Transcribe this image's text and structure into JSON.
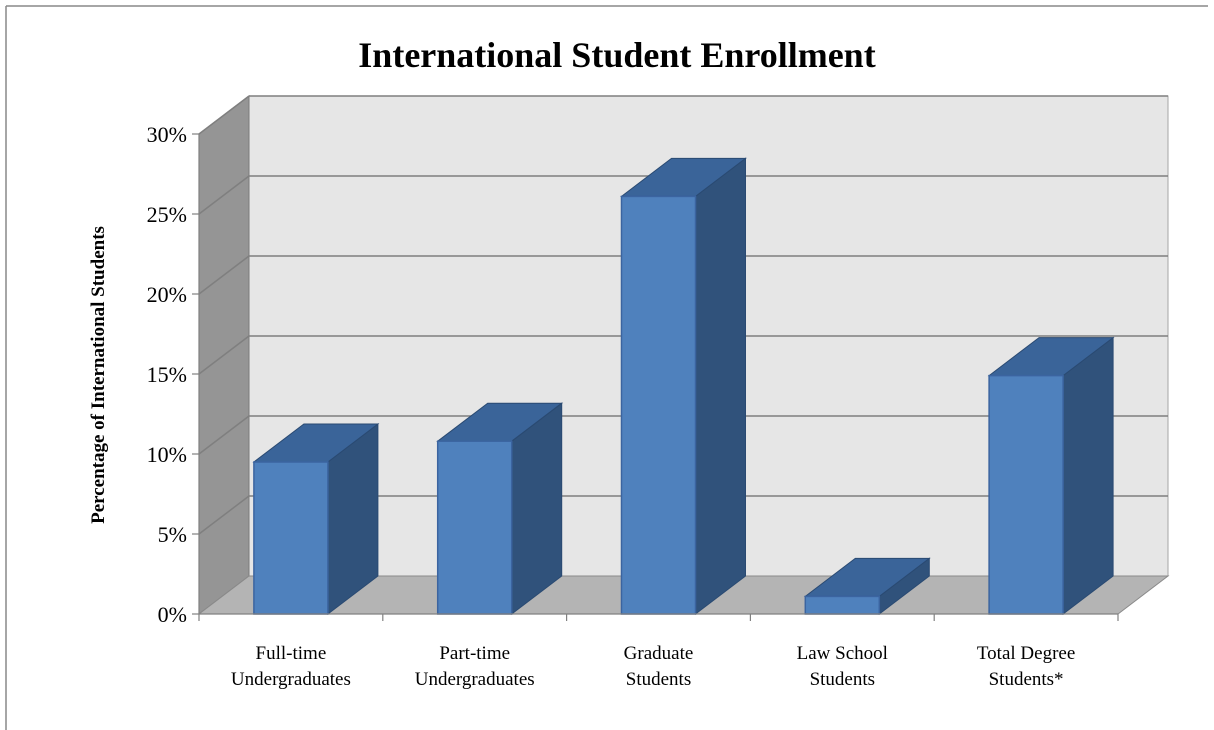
{
  "chart_data": {
    "type": "bar",
    "title": "International Student Enrollment",
    "ylabel": "Percentage of International Students",
    "xlabel": "",
    "categories": [
      [
        "Full-time",
        "Undergraduates"
      ],
      [
        "Part-time",
        "Undergraduates"
      ],
      [
        "Graduate",
        "Students"
      ],
      [
        "Law School",
        "Students"
      ],
      [
        "Total Degree",
        "Students*"
      ]
    ],
    "values": [
      9.5,
      10.8,
      26.1,
      1.1,
      14.9
    ],
    "ylim": [
      0,
      30
    ],
    "yticks": [
      "0%",
      "5%",
      "10%",
      "15%",
      "20%",
      "25%",
      "30%"
    ],
    "grid": true,
    "style": "3d-column",
    "colors": {
      "bar_front": "#4f81bd",
      "bar_side": "#30527b",
      "bar_top": "#3a6499",
      "back_wall": "#e6e6e6",
      "side_wall": "#959595",
      "floor": "#b4b4b4",
      "grid": "#7f7f7f"
    }
  }
}
